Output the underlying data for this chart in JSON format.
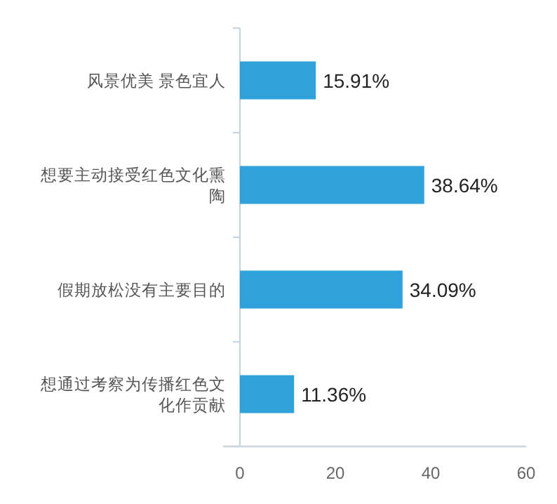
{
  "chart_data": {
    "type": "bar",
    "orientation": "horizontal",
    "categories": [
      "风景优美 景色宜人",
      "想要主动接受红色文化熏陶",
      "假期放松没有主要目的",
      "想通过考察为传播红色文化作贡献"
    ],
    "values": [
      15.91,
      38.64,
      34.09,
      11.36
    ],
    "value_labels": [
      "15.91%",
      "38.64%",
      "34.09%",
      "11.36%"
    ],
    "color": "#2fa1db",
    "xlim": [
      0,
      60
    ],
    "xticks": [
      0,
      20,
      40,
      60
    ],
    "grid": false
  }
}
